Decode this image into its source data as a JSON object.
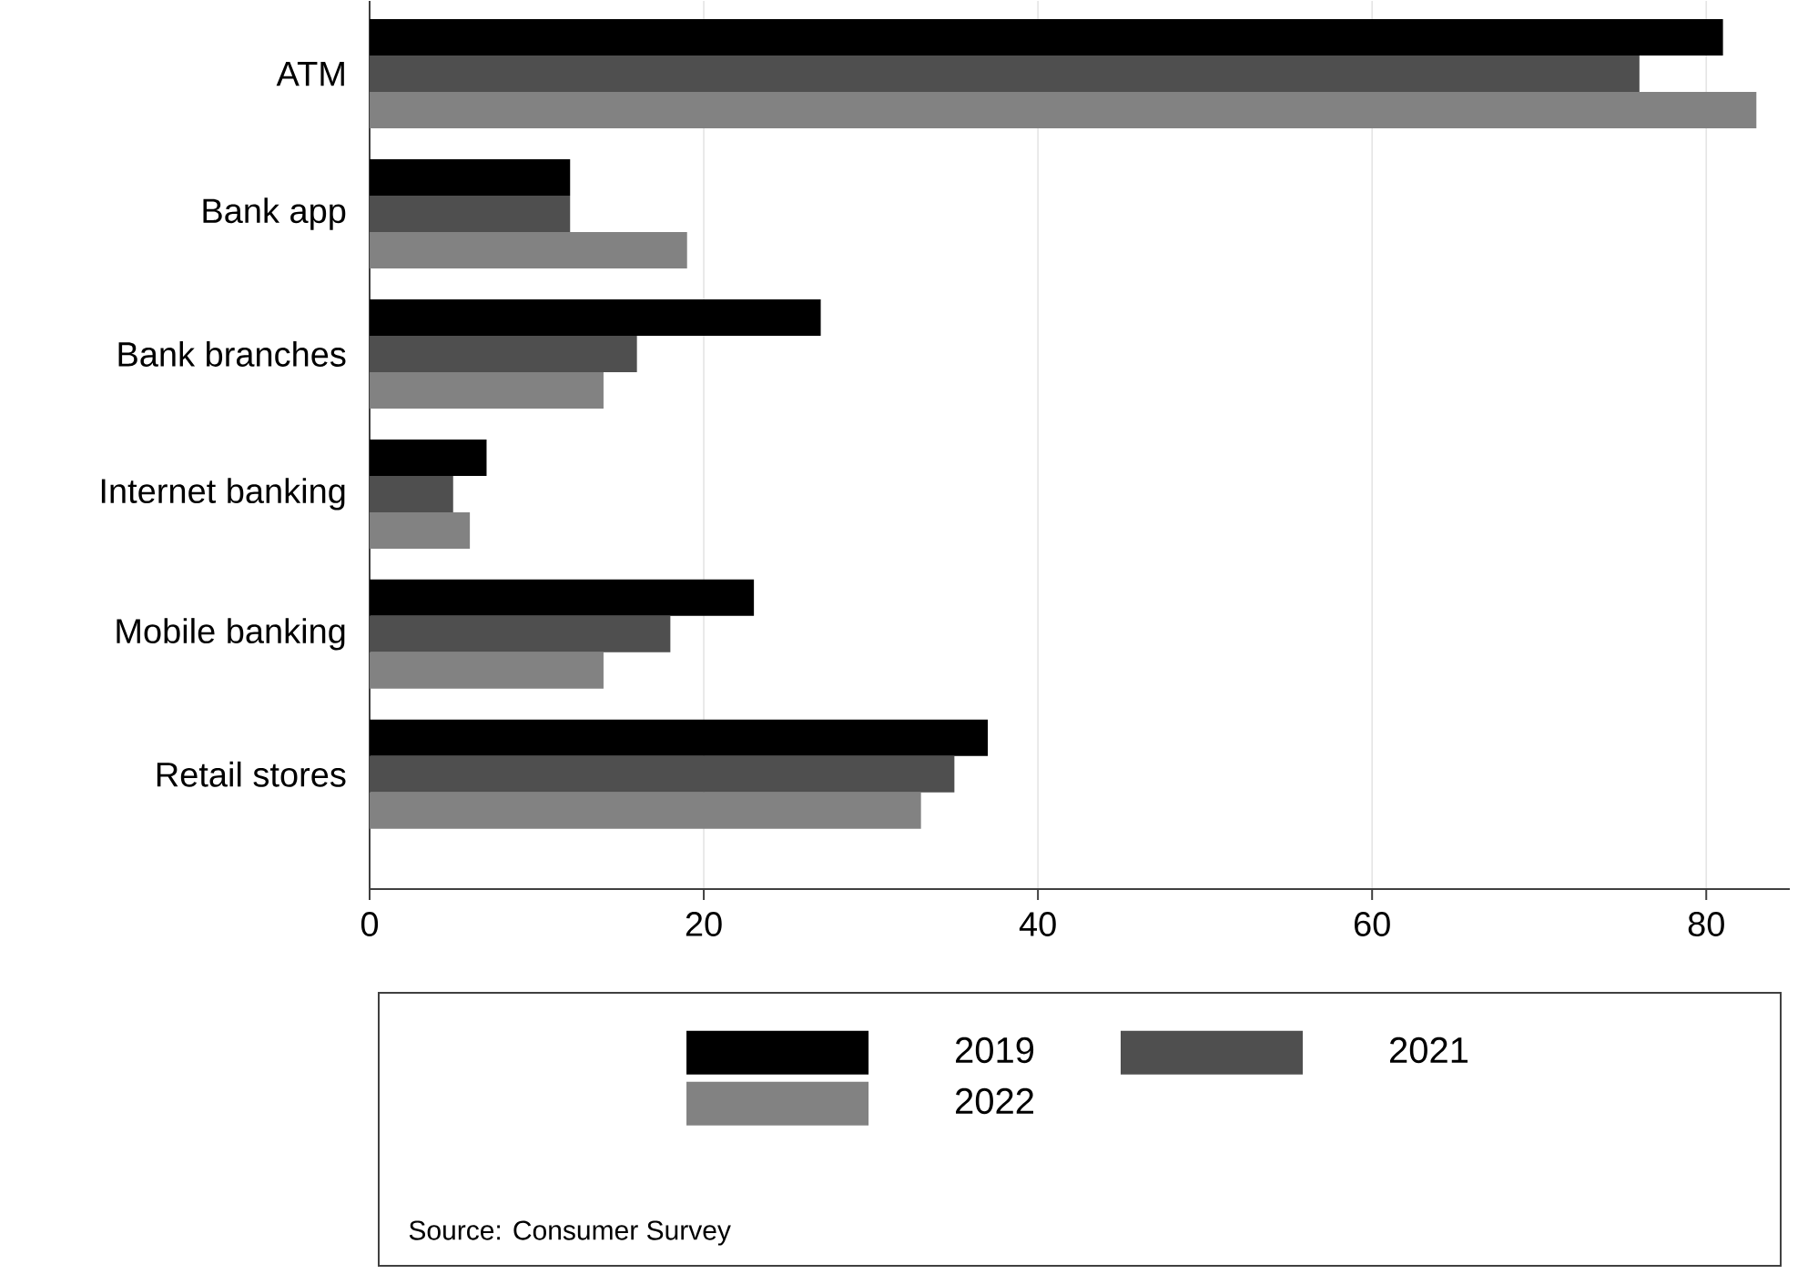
{
  "chart_data": {
    "type": "bar",
    "orientation": "horizontal",
    "categories": [
      "ATM",
      "Bank app",
      "Bank branches",
      "Internet banking",
      "Mobile banking",
      "Retail stores"
    ],
    "series": [
      {
        "name": "2019",
        "color": "#000000",
        "values": [
          81,
          12,
          27,
          7,
          23,
          37
        ]
      },
      {
        "name": "2021",
        "color": "#4f4f4f",
        "values": [
          76,
          12,
          16,
          5,
          18,
          35
        ]
      },
      {
        "name": "2022",
        "color": "#828282",
        "values": [
          83,
          19,
          14,
          6,
          14,
          33
        ]
      }
    ],
    "xlim": [
      0,
      85
    ],
    "xticks": [
      0,
      20,
      40,
      60,
      80
    ],
    "grid": "x",
    "legend": "bottom",
    "annotations": [
      "Source: Consumer Survey"
    ]
  }
}
